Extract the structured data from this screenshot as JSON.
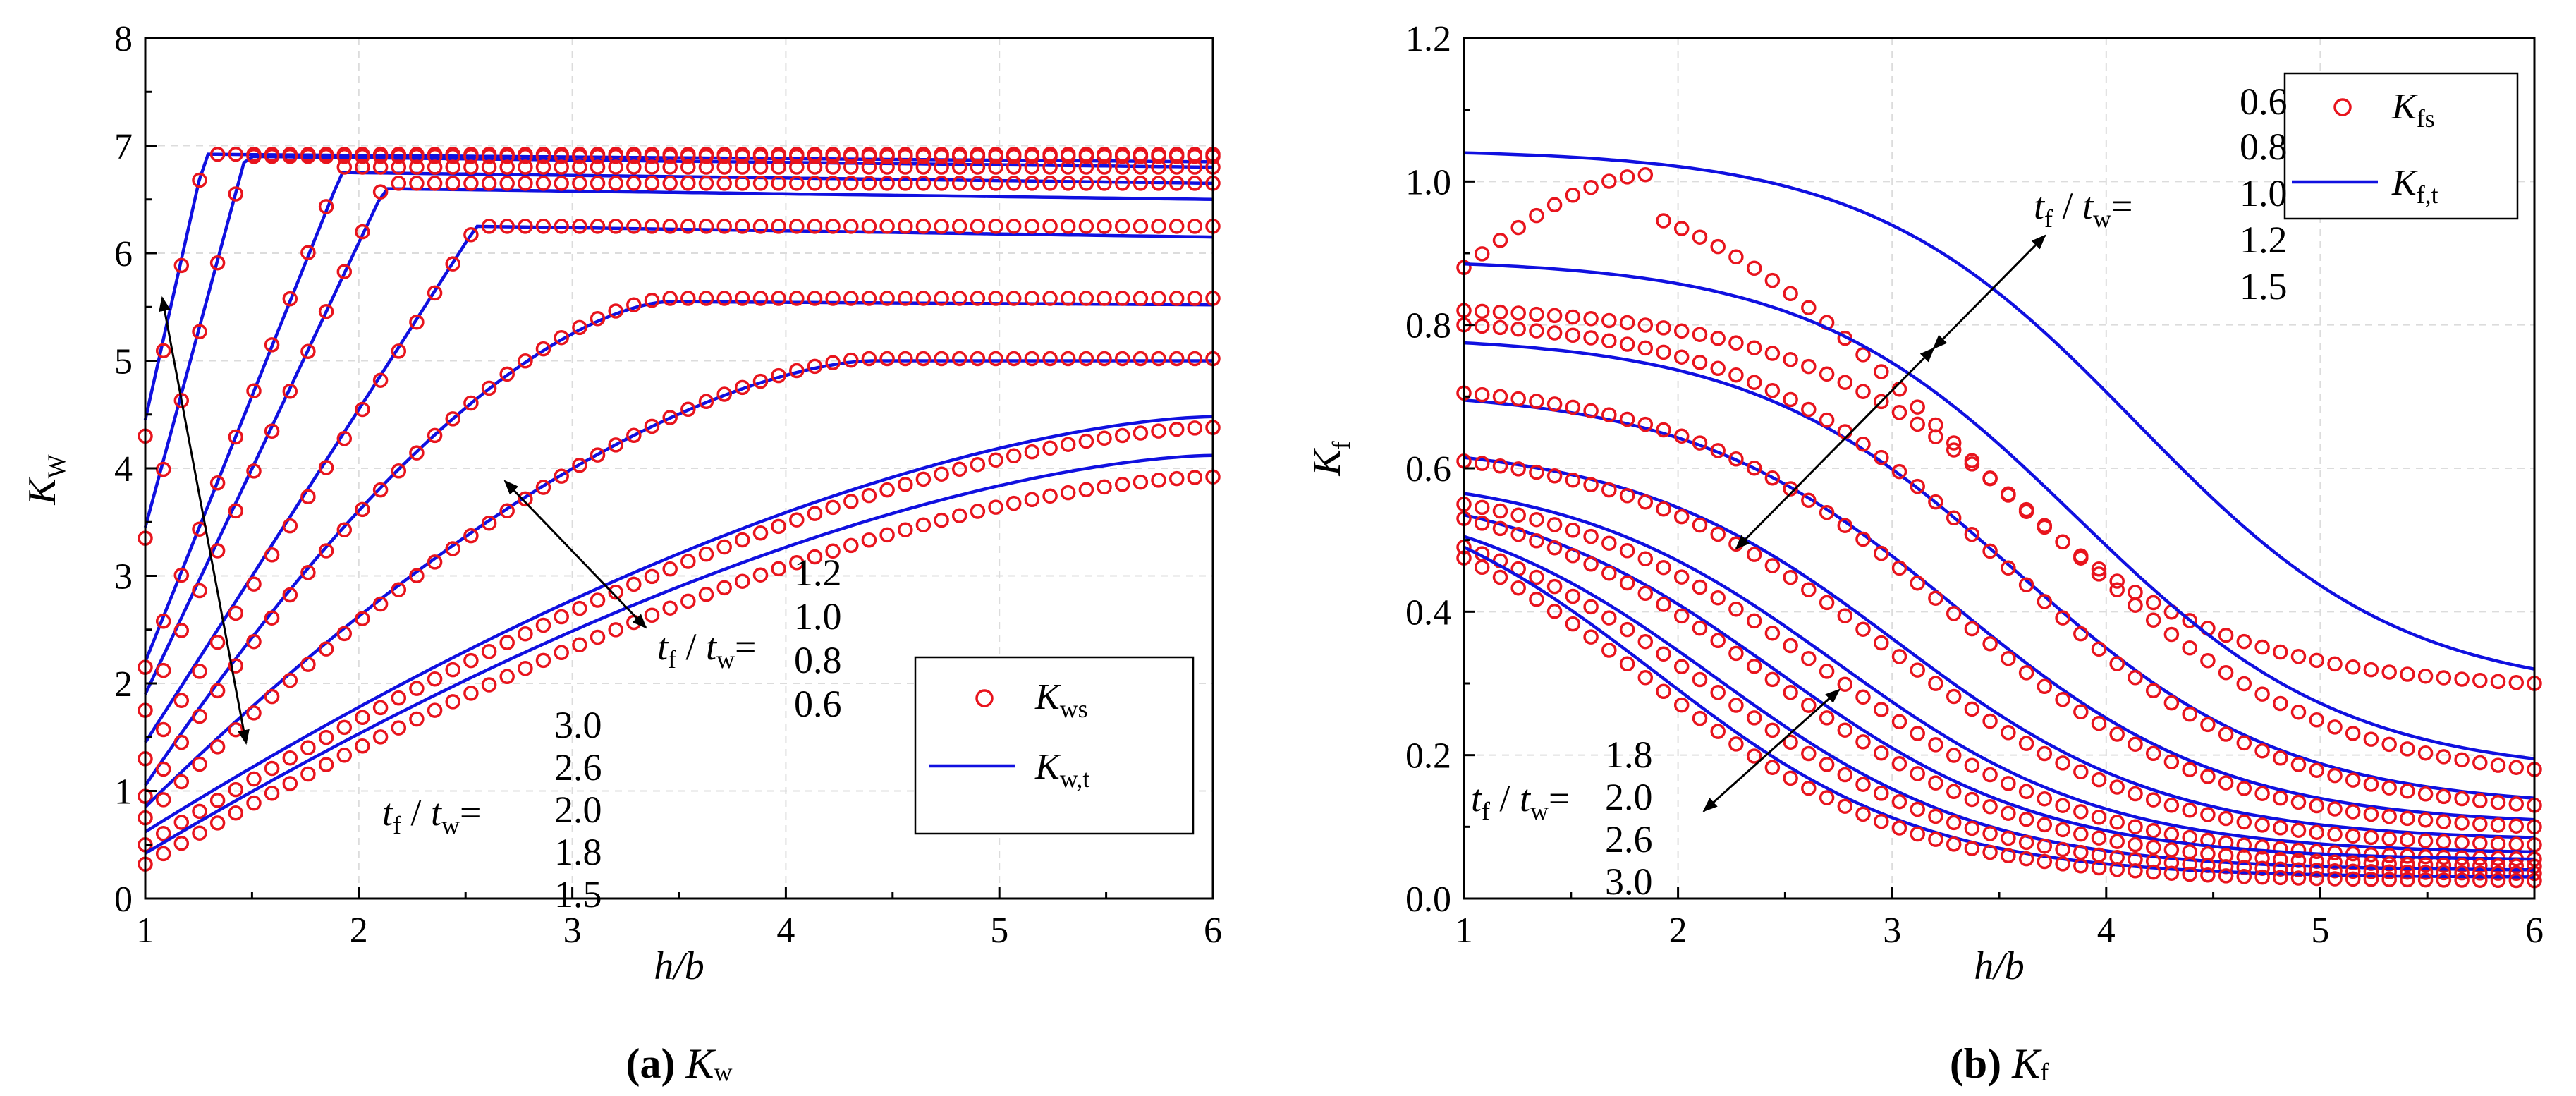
{
  "chart_data": [
    {
      "type": "line",
      "id": "a",
      "caption_prefix": "(a)",
      "caption_var": "K",
      "caption_sub": "w",
      "xlabel": "h/b",
      "ylabel_main": "K",
      "ylabel_sub": "W",
      "xlim": [
        1,
        6
      ],
      "ylim": [
        0,
        8
      ],
      "xticks": [
        "1",
        "2",
        "3",
        "4",
        "5",
        "6"
      ],
      "yticks": [
        "0",
        "1",
        "2",
        "3",
        "4",
        "5",
        "6",
        "7",
        "8"
      ],
      "legend": {
        "scatter_main": "K",
        "scatter_sub": "ws",
        "line_main": "K",
        "line_sub": "w,t"
      },
      "annotation_left": {
        "t": "t",
        "f": "f",
        "w": "w",
        "values": [
          "3.0",
          "2.6",
          "2.0",
          "1.8",
          "1.5"
        ]
      },
      "annotation_right": {
        "t": "t",
        "f": "f",
        "w": "w",
        "values": [
          "1.2",
          "1.0",
          "0.8",
          "0.6"
        ]
      },
      "series": [
        {
          "name": "tf/tw=0.6",
          "knee": 1.28,
          "plateau_s": 6.92,
          "plateau_t": 6.92,
          "start_s": 4.3,
          "start_t": 4.45,
          "end_t": 6.85
        },
        {
          "name": "tf/tw=0.8",
          "knee": 1.47,
          "plateau_s": 6.9,
          "plateau_t": 6.9,
          "start_s": 3.35,
          "start_t": 3.45,
          "end_t": 6.8
        },
        {
          "name": "tf/tw=1.0",
          "knee": 1.92,
          "plateau_s": 6.8,
          "plateau_t": 6.75,
          "start_s": 2.15,
          "start_t": 2.2,
          "end_t": 6.65
        },
        {
          "name": "tf/tw=1.2",
          "knee": 2.12,
          "plateau_s": 6.65,
          "plateau_t": 6.6,
          "start_s": 1.75,
          "start_t": 1.9,
          "end_t": 6.5
        },
        {
          "name": "tf/tw=1.5",
          "knee": 2.55,
          "plateau_s": 6.25,
          "plateau_t": 6.25,
          "start_s": 1.3,
          "start_t": 1.45,
          "end_t": 6.15
        },
        {
          "name": "tf/tw=1.8",
          "knee": 3.45,
          "plateau_s": 5.58,
          "plateau_t": 5.55,
          "start_s": 0.95,
          "start_t": 1.05,
          "end_t": 5.52
        },
        {
          "name": "tf/tw=2.0",
          "knee": 4.4,
          "plateau_s": 5.02,
          "plateau_t": 5.0,
          "start_s": 0.75,
          "start_t": 0.85,
          "end_t": 5.0
        },
        {
          "name": "tf/tw=2.6",
          "knee": 6.0,
          "plateau_s": 4.38,
          "plateau_t": 4.48,
          "start_s": 0.5,
          "start_t": 0.62,
          "end_t": 4.48
        },
        {
          "name": "tf/tw=3.0",
          "knee": 6.0,
          "plateau_s": 3.92,
          "plateau_t": 4.12,
          "start_s": 0.32,
          "start_t": 0.42,
          "end_t": 4.12
        }
      ]
    },
    {
      "type": "line",
      "id": "b",
      "caption_prefix": "(b)",
      "caption_var": "K",
      "caption_sub": "f",
      "xlabel": "h/b",
      "ylabel_main": "K",
      "ylabel_sub": "f",
      "xlim": [
        1,
        6
      ],
      "ylim": [
        0,
        1.2
      ],
      "xticks": [
        "1",
        "2",
        "3",
        "4",
        "5",
        "6"
      ],
      "yticks": [
        "0.0",
        "0.2",
        "0.4",
        "0.6",
        "0.8",
        "1.0",
        "1.2"
      ],
      "legend": {
        "scatter_main": "K",
        "scatter_sub": "fs",
        "line_main": "K",
        "line_sub": "f,t"
      },
      "annotation_top": {
        "t": "t",
        "f": "f",
        "w": "w",
        "values": [
          "0.6",
          "0.8",
          "1.0",
          "1.2",
          "1.5"
        ]
      },
      "annotation_bottom": {
        "t": "t",
        "f": "f",
        "w": "w",
        "values": [
          "1.8",
          "2.0",
          "2.6",
          "3.0"
        ]
      },
      "series": [
        {
          "name": "tf/tw=0.6",
          "start_t": 1.04,
          "end_t": 0.32,
          "start_s": 0.88,
          "peak_s": 1.01,
          "end_s": 0.3
        },
        {
          "name": "tf/tw=0.8",
          "start_t": 0.885,
          "end_t": 0.195,
          "start_s": 0.82,
          "end_s": 0.18
        },
        {
          "name": "tf/tw=1.0",
          "start_t": 0.775,
          "end_t": 0.14,
          "start_s": 0.8,
          "end_s": 0.13
        },
        {
          "name": "tf/tw=1.2",
          "start_t": 0.695,
          "end_t": 0.11,
          "start_s": 0.705,
          "end_s": 0.1
        },
        {
          "name": "tf/tw=1.5",
          "start_t": 0.615,
          "end_t": 0.085,
          "start_s": 0.61,
          "end_s": 0.075
        },
        {
          "name": "tf/tw=1.8",
          "start_t": 0.565,
          "end_t": 0.065,
          "start_s": 0.55,
          "end_s": 0.055
        },
        {
          "name": "tf/tw=2.0",
          "start_t": 0.535,
          "end_t": 0.055,
          "start_s": 0.53,
          "end_s": 0.045
        },
        {
          "name": "tf/tw=2.6",
          "start_t": 0.505,
          "end_t": 0.04,
          "start_s": 0.49,
          "end_s": 0.035
        },
        {
          "name": "tf/tw=3.0",
          "start_t": 0.49,
          "end_t": 0.03,
          "start_s": 0.475,
          "end_s": 0.025
        }
      ]
    }
  ]
}
